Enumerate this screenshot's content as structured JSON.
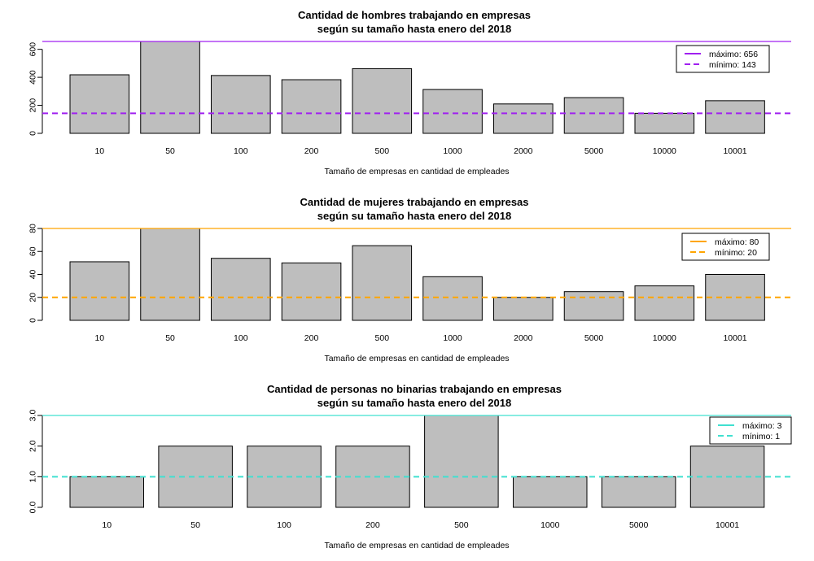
{
  "chart_data": [
    {
      "type": "bar",
      "title": "Cantidad de hombres trabajando en empresas",
      "subtitle": "según su tamaño hasta enero del 2018",
      "xlabel": "Tamaño de empresas en cantidad de empleades",
      "ylabel": "",
      "categories": [
        "10",
        "50",
        "100",
        "200",
        "500",
        "1000",
        "2000",
        "5000",
        "10000",
        "10001"
      ],
      "values": [
        418,
        656,
        413,
        383,
        462,
        313,
        210,
        255,
        143,
        233
      ],
      "ylim": [
        0,
        656
      ],
      "yticks": [
        "0",
        "200",
        "400",
        "600"
      ],
      "ytick_values": [
        0,
        200,
        400,
        600
      ],
      "bar_color": "#bebebe",
      "reference_lines": {
        "max": 656,
        "min": 143,
        "color": "#a020f0"
      },
      "legend": {
        "position": "top-right",
        "max_label": "máximo:",
        "max_value": "656",
        "min_label": "mínimo:",
        "min_value": "143"
      }
    },
    {
      "type": "bar",
      "title": "Cantidad de mujeres trabajando en empresas",
      "subtitle": "según su tamaño hasta enero del 2018",
      "xlabel": "Tamaño de empresas en cantidad de empleades",
      "ylabel": "",
      "categories": [
        "10",
        "50",
        "100",
        "200",
        "500",
        "1000",
        "2000",
        "5000",
        "10000",
        "10001"
      ],
      "values": [
        51,
        80,
        54,
        50,
        65,
        38,
        20,
        25,
        30,
        40
      ],
      "ylim": [
        0,
        80
      ],
      "yticks": [
        "0",
        "20",
        "40",
        "60",
        "80"
      ],
      "ytick_values": [
        0,
        20,
        40,
        60,
        80
      ],
      "bar_color": "#bebebe",
      "reference_lines": {
        "max": 80,
        "min": 20,
        "color": "#ffa500"
      },
      "legend": {
        "position": "top-right",
        "max_label": "máximo:",
        "max_value": "80",
        "min_label": "mínimo:",
        "min_value": "20"
      }
    },
    {
      "type": "bar",
      "title": "Cantidad de personas no binarias trabajando en empresas",
      "subtitle": "según su tamaño hasta enero del 2018",
      "xlabel": "Tamaño de empresas en cantidad de empleades",
      "ylabel": "",
      "categories": [
        "10",
        "50",
        "100",
        "200",
        "500",
        "1000",
        "5000",
        "10001"
      ],
      "values": [
        1,
        2,
        2,
        2,
        3,
        1,
        1,
        2
      ],
      "ylim": [
        0,
        3
      ],
      "yticks": [
        "0.0",
        "1.0",
        "2.0",
        "3.0"
      ],
      "ytick_values": [
        0,
        1,
        2,
        3
      ],
      "bar_color": "#bebebe",
      "reference_lines": {
        "max": 3,
        "min": 1,
        "color": "#40e0d0"
      },
      "legend": {
        "position": "top-right",
        "max_label": "máximo:",
        "max_value": "3",
        "min_label": "mínimo:",
        "min_value": "1"
      }
    }
  ]
}
